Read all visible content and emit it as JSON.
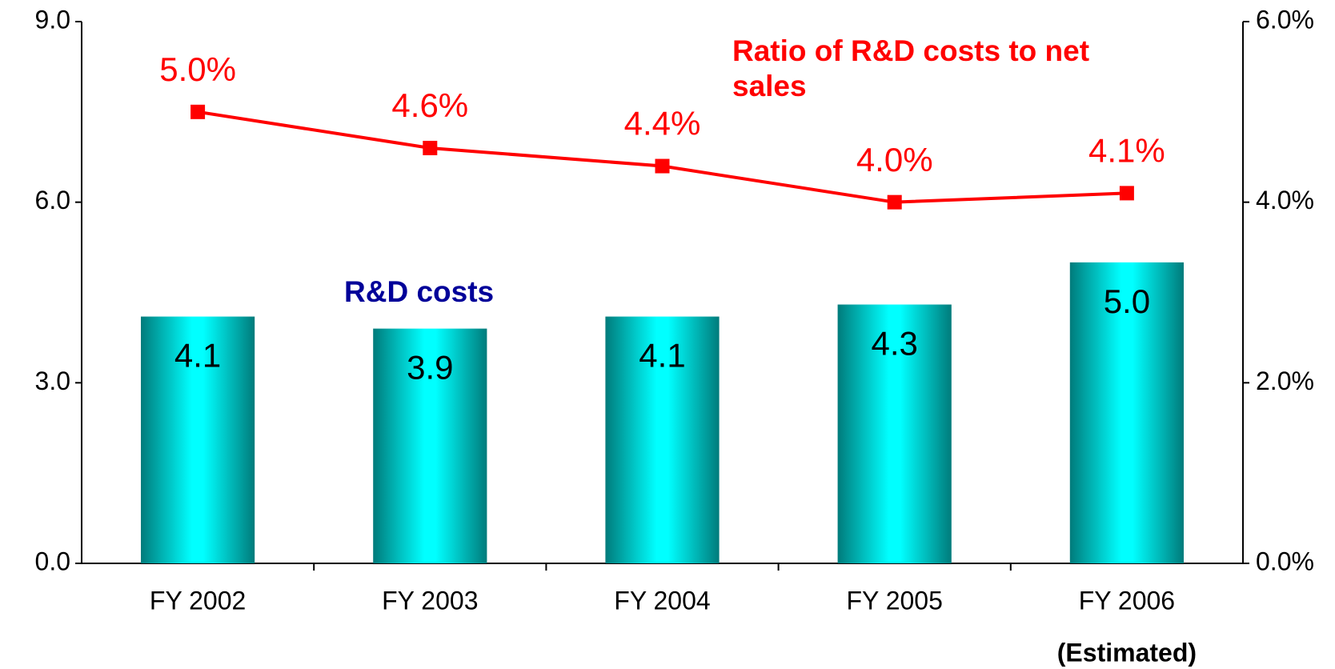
{
  "chart_data": {
    "type": "bar",
    "categories": [
      "FY 2002",
      "FY 2003",
      "FY 2004",
      "FY 2005",
      "FY 2006"
    ],
    "annotations": [
      "(Estimated)"
    ],
    "series": [
      {
        "name": "R&D costs",
        "type": "bar",
        "color": "#00cccc",
        "label_color": "#000099",
        "values": [
          4.1,
          3.9,
          4.1,
          4.3,
          5.0
        ],
        "value_labels": [
          "4.1",
          "3.9",
          "4.1",
          "4.3",
          "5.0"
        ]
      },
      {
        "name": "Ratio of R&D costs to net sales",
        "type": "line",
        "axis": "y2",
        "color": "#ff0000",
        "values": [
          5.0,
          4.6,
          4.4,
          4.0,
          4.1
        ],
        "value_labels": [
          "5.0%",
          "4.6%",
          "4.4%",
          "4.0%",
          "4.1%"
        ]
      }
    ],
    "ylim": [
      0,
      9
    ],
    "yticks": [
      {
        "value": 0,
        "label": "0.0"
      },
      {
        "value": 3,
        "label": "3.0"
      },
      {
        "value": 6,
        "label": "6.0"
      },
      {
        "value": 9,
        "label": "9.0"
      }
    ],
    "y2lim": [
      0,
      6
    ],
    "y2ticks": [
      {
        "value": 0,
        "label": "0.0%"
      },
      {
        "value": 2,
        "label": "2.0%"
      },
      {
        "value": 4,
        "label": "4.0%"
      },
      {
        "value": 6,
        "label": "6.0%"
      }
    ]
  }
}
